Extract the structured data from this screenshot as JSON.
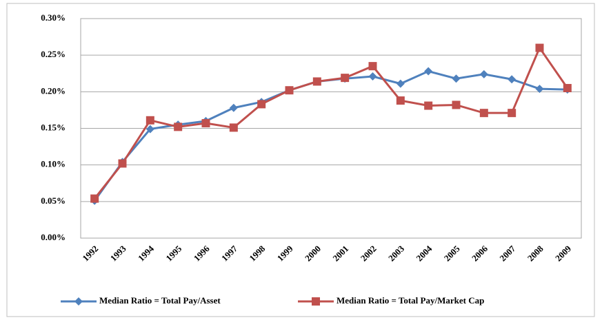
{
  "chart_data": {
    "type": "line",
    "categories": [
      "1992",
      "1993",
      "1994",
      "1995",
      "1996",
      "1997",
      "1998",
      "1999",
      "2000",
      "2001",
      "2002",
      "2003",
      "2004",
      "2005",
      "2006",
      "2007",
      "2008",
      "2009"
    ],
    "series": [
      {
        "name": "Median Ratio = Total Pay/Asset",
        "color": "#4f81bd",
        "marker": "diamond",
        "values": [
          0.051,
          0.104,
          0.149,
          0.155,
          0.16,
          0.178,
          0.186,
          0.202,
          0.214,
          0.218,
          0.221,
          0.211,
          0.228,
          0.218,
          0.224,
          0.217,
          0.204,
          0.203
        ]
      },
      {
        "name": "Median Ratio = Total Pay/Market Cap",
        "color": "#c0504d",
        "marker": "square",
        "values": [
          0.054,
          0.102,
          0.161,
          0.152,
          0.157,
          0.151,
          0.183,
          0.202,
          0.214,
          0.219,
          0.235,
          0.188,
          0.181,
          0.182,
          0.171,
          0.171,
          0.26,
          0.205
        ]
      }
    ],
    "ylim": [
      0,
      0.3
    ],
    "yticks": [
      {
        "value": 0,
        "label": "0.00%"
      },
      {
        "value": 0.05,
        "label": "0.05%"
      },
      {
        "value": 0.1,
        "label": "0.10%"
      },
      {
        "value": 0.15,
        "label": "0.15%"
      },
      {
        "value": 0.2,
        "label": "0.20%"
      },
      {
        "value": 0.25,
        "label": "0.25%"
      },
      {
        "value": 0.3,
        "label": "0.30%"
      }
    ],
    "grid": true,
    "legend": "bottom"
  }
}
